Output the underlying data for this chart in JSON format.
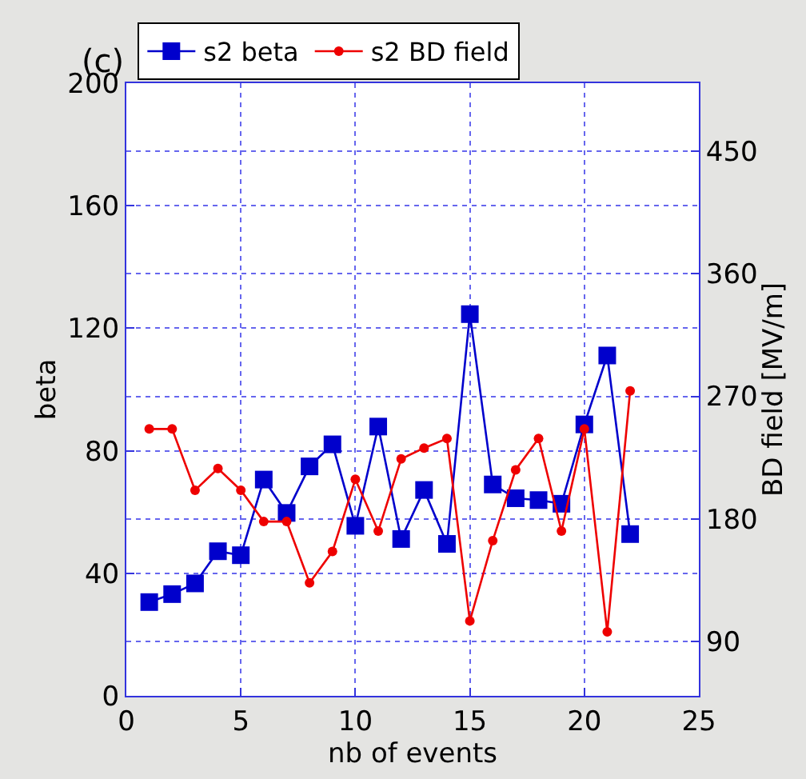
{
  "chart_data": {
    "type": "line",
    "title": "(c)",
    "xlabel": "nb of events",
    "ylabel": "beta",
    "y2label": "BD field [MV/m]",
    "x": [
      1,
      2,
      3,
      4,
      5,
      6,
      7,
      8,
      9,
      10,
      11,
      12,
      13,
      14,
      15,
      16,
      17,
      18,
      19,
      20,
      21,
      22
    ],
    "series": [
      {
        "name": "s2 beta",
        "color": "#0000cc",
        "marker": "square",
        "values": [
          30.6,
          33.2,
          36.7,
          47.2,
          45.9,
          70.6,
          59.7,
          74.9,
          82.1,
          55.5,
          87.9,
          51.2,
          67.2,
          49.6,
          124.6,
          69.0,
          64.5,
          63.9,
          62.7,
          88.6,
          111.1,
          52.8
        ]
      },
      {
        "name": "s2 BD field",
        "color": "#ee0000",
        "marker": "circle",
        "axis": "y2",
        "values": [
          246,
          246,
          201,
          217,
          201,
          178,
          178,
          133,
          156,
          209,
          171,
          224,
          232,
          239,
          105,
          164,
          216,
          239,
          171,
          246,
          97,
          274
        ]
      }
    ],
    "xlim": [
      0,
      25
    ],
    "xticks": [
      0,
      5,
      10,
      15,
      20,
      25
    ],
    "ylim": [
      0,
      200
    ],
    "yticks": [
      0,
      40,
      80,
      120,
      160,
      200
    ],
    "y2lim": [
      50,
      500
    ],
    "y2ticks": [
      90,
      180,
      270,
      360,
      450
    ],
    "grid": true,
    "legend": "top",
    "line_style": "solid"
  }
}
